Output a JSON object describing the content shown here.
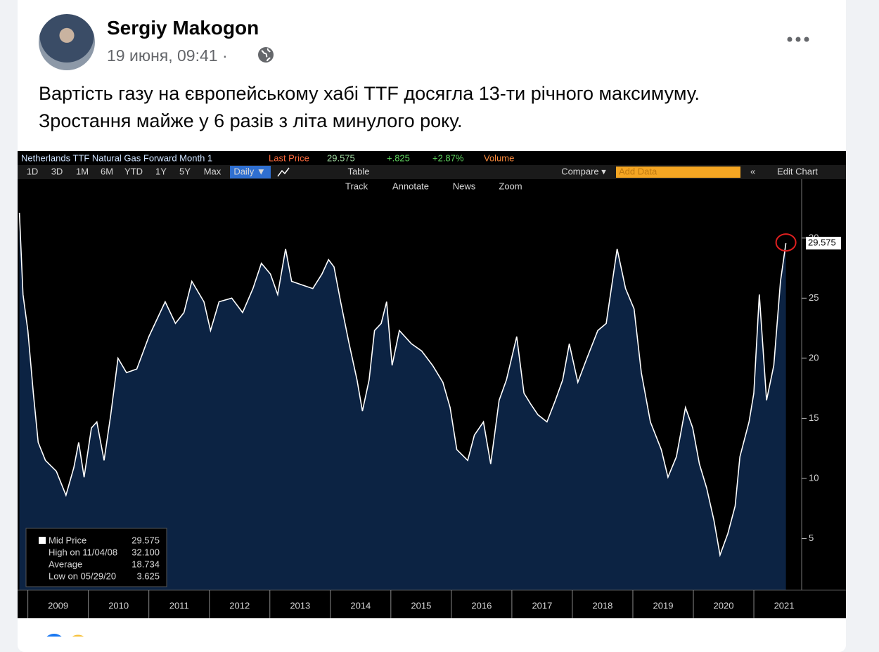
{
  "post": {
    "author": "Sergiy Makogon",
    "date": "19 июня, 09:41 ·",
    "text": [
      "Вартість газу на європейському хабі TTF досягла 13-ти річного максимуму.",
      "Зростання майже у 6 разів з літа минулого року."
    ]
  },
  "chart_data": {
    "type": "area",
    "header": {
      "title": "Netherlands TTF Natural Gas Forward Month 1",
      "last_price_label": "Last Price",
      "change": "+.825",
      "change_pct": "+2.87%",
      "volume": "Volume"
    },
    "toolbar": [
      "1D",
      "3D",
      "1M",
      "6M",
      "YTD",
      "1Y",
      "5Y",
      "Max",
      "Daily ▼",
      "Table"
    ],
    "toolbar_right": {
      "compare": "Compare ▾",
      "add_data": "Add Data",
      "edit_chart": "Edit Chart"
    },
    "tools": [
      "Track",
      "Annotate",
      "News",
      "Zoom"
    ],
    "x": [
      2008.86,
      2008.92,
      2009.0,
      2009.09,
      2009.17,
      2009.29,
      2009.47,
      2009.63,
      2009.76,
      2009.84,
      2009.93,
      2010.05,
      2010.14,
      2010.26,
      2010.37,
      2010.49,
      2010.63,
      2010.8,
      2011.0,
      2011.27,
      2011.44,
      2011.58,
      2011.71,
      2011.91,
      2012.02,
      2012.16,
      2012.37,
      2012.55,
      2012.72,
      2012.86,
      2013.01,
      2013.13,
      2013.26,
      2013.36,
      2013.53,
      2013.71,
      2013.86,
      2013.97,
      2014.06,
      2014.17,
      2014.31,
      2014.44,
      2014.53,
      2014.64,
      2014.73,
      2014.84,
      2014.93,
      2015.02,
      2015.14,
      2015.34,
      2015.51,
      2015.69,
      2015.86,
      2015.98,
      2016.09,
      2016.27,
      2016.38,
      2016.53,
      2016.65,
      2016.79,
      2016.91,
      2017.08,
      2017.2,
      2017.31,
      2017.43,
      2017.58,
      2017.72,
      2017.84,
      2017.95,
      2018.09,
      2018.24,
      2018.42,
      2018.56,
      2018.74,
      2018.88,
      2019.02,
      2019.14,
      2019.29,
      2019.47,
      2019.58,
      2019.72,
      2019.87,
      2019.99,
      2020.1,
      2020.22,
      2020.34,
      2020.44,
      2020.57,
      2020.69,
      2020.77,
      2020.92,
      2021.0,
      2021.09,
      2021.21,
      2021.33,
      2021.44,
      2021.53
    ],
    "series": [
      {
        "name": "Mid Price",
        "color": "#ffffff",
        "fill": "#0c2343",
        "last_value_label": "29.575",
        "values": [
          32.1,
          25.3,
          22.3,
          17.1,
          13,
          11.5,
          10.6,
          8.6,
          10.9,
          13,
          10.1,
          14.2,
          14.7,
          11.5,
          15.3,
          20,
          18.8,
          19.1,
          21.8,
          24.7,
          22.9,
          23.8,
          26.4,
          24.7,
          22.3,
          24.7,
          25,
          23.8,
          25.8,
          27.9,
          27,
          25.3,
          29.1,
          26.4,
          26.1,
          25.8,
          27,
          28.2,
          27.6,
          24.7,
          21.2,
          18.2,
          15.6,
          18.2,
          22.3,
          22.9,
          24.7,
          19.4,
          22.3,
          21.2,
          20.6,
          19.4,
          18,
          15.9,
          12.4,
          11.5,
          13.6,
          14.7,
          11.2,
          16.5,
          18.2,
          21.8,
          17.1,
          16.2,
          15.3,
          14.7,
          16.5,
          18.2,
          21.2,
          18,
          20,
          22.3,
          22.9,
          29.1,
          25.8,
          24.1,
          18.8,
          14.7,
          12.4,
          10.1,
          11.8,
          15.9,
          14.2,
          11.2,
          9.2,
          6.5,
          3.625,
          5.4,
          7.7,
          11.8,
          14.7,
          17.1,
          25.3,
          16.5,
          19.4,
          26.4,
          29.575
        ]
      }
    ],
    "stats": [
      {
        "label": "High on 11/04/08",
        "value": "32.100"
      },
      {
        "label": "Average",
        "value": "18.734"
      },
      {
        "label": "Low on 05/29/20",
        "value": "3.625"
      }
    ],
    "xlim": [
      2008.83,
      2021.79
    ],
    "xticks": [
      2009,
      2010,
      2011,
      2012,
      2013,
      2014,
      2015,
      2016,
      2017,
      2018,
      2019,
      2020,
      2021
    ],
    "ylim": [
      0.7,
      34.9
    ],
    "yticks": [
      5,
      10,
      15,
      20,
      25,
      30
    ],
    "grid": false
  }
}
